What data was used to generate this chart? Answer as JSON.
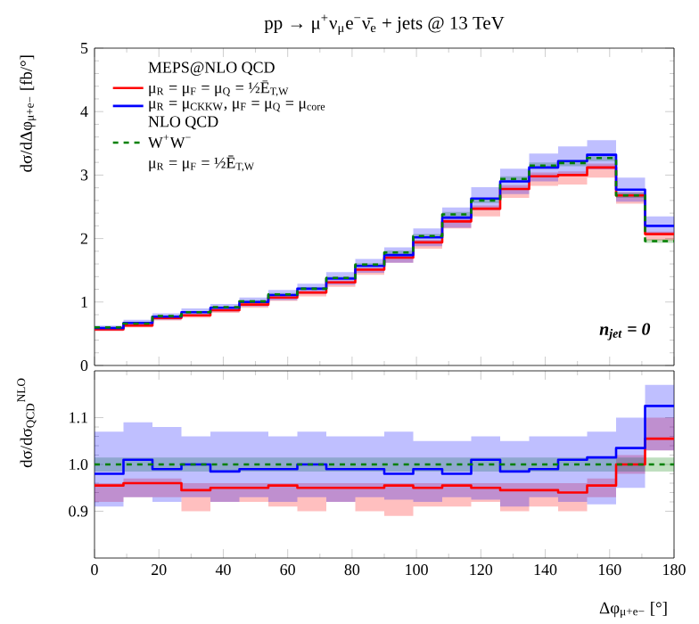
{
  "chart_data": [
    {
      "type": "step",
      "title": "pp → μ$^{+}$ν$_{μ}$e$^{−}$ν̄$_{e}$ + jets @ 13 TeV",
      "ylabel": "dσ/dΔφ$_{μ+e−}$ [fb/°]",
      "x": [
        0,
        9,
        18,
        27,
        36,
        45,
        54,
        63,
        72,
        81,
        90,
        99,
        108,
        117,
        126,
        135,
        144,
        153,
        162,
        171,
        180
      ],
      "xlim": [
        0,
        180
      ],
      "xticks": [
        0,
        20,
        40,
        60,
        80,
        100,
        120,
        140,
        160,
        180
      ],
      "ylim": [
        0,
        5
      ],
      "yticks": [
        0,
        1,
        2,
        3,
        4,
        5
      ],
      "tick_labels": "y",
      "legend": "top left",
      "annotations": [
        "MEPS@NLO QCD",
        "NLO QCD",
        "μ$_{R}$ = μ$_{F}$ = ½Ē$_{T,W}$",
        "n$_{jet}$ = 0"
      ],
      "series": [
        {
          "name": "μ$_{R}$ = μ$_{F}$ = μ$_{Q}$ = ½Ē$_{T,W}$",
          "color": "#ff0000",
          "values": [
            0.57,
            0.63,
            0.75,
            0.79,
            0.87,
            0.96,
            1.07,
            1.15,
            1.31,
            1.51,
            1.7,
            1.94,
            2.27,
            2.47,
            2.78,
            2.98,
            3.0,
            3.12,
            2.68,
            2.07,
            2.07
          ],
          "upper": [
            0.58,
            0.64,
            0.77,
            0.81,
            0.89,
            0.98,
            1.09,
            1.17,
            1.34,
            1.54,
            1.73,
            1.98,
            2.32,
            2.52,
            2.84,
            3.04,
            3.06,
            3.18,
            2.73,
            2.11,
            2.11
          ],
          "lower": [
            0.54,
            0.6,
            0.71,
            0.75,
            0.83,
            0.91,
            1.02,
            1.09,
            1.24,
            1.43,
            1.62,
            1.84,
            2.16,
            2.35,
            2.64,
            2.83,
            2.85,
            2.96,
            2.55,
            1.97,
            1.97
          ]
        },
        {
          "name": "μ$_{R}$ = μ$_{CKKW}$, μ$_{F}$ = μ$_{Q}$ = μ$_{core}$",
          "color": "#0000ff",
          "values": [
            0.59,
            0.67,
            0.77,
            0.84,
            0.91,
            1.0,
            1.11,
            1.21,
            1.37,
            1.57,
            1.74,
            2.02,
            2.33,
            2.63,
            2.9,
            3.12,
            3.22,
            3.32,
            2.77,
            2.2,
            2.2
          ],
          "upper": [
            0.63,
            0.72,
            0.82,
            0.9,
            0.97,
            1.07,
            1.19,
            1.29,
            1.47,
            1.68,
            1.86,
            2.16,
            2.49,
            2.81,
            3.1,
            3.34,
            3.45,
            3.55,
            2.96,
            2.35,
            2.35
          ],
          "lower": [
            0.55,
            0.62,
            0.72,
            0.78,
            0.85,
            0.93,
            1.03,
            1.13,
            1.27,
            1.46,
            1.62,
            1.88,
            2.17,
            2.45,
            2.7,
            2.9,
            2.99,
            3.09,
            2.58,
            2.05,
            2.05
          ]
        },
        {
          "name": "W$^{+}$W$^{−}$",
          "color": "#008000",
          "line_style": "dashed",
          "values": [
            0.6,
            0.66,
            0.78,
            0.84,
            0.92,
            1.01,
            1.12,
            1.21,
            1.38,
            1.59,
            1.78,
            2.04,
            2.38,
            2.6,
            2.94,
            3.15,
            3.19,
            3.27,
            2.68,
            1.96,
            1.96
          ],
          "upper": [
            0.61,
            0.67,
            0.79,
            0.85,
            0.93,
            1.03,
            1.14,
            1.23,
            1.4,
            1.61,
            1.81,
            2.07,
            2.42,
            2.64,
            2.98,
            3.2,
            3.24,
            3.32,
            2.72,
            1.99,
            1.99
          ],
          "lower": [
            0.59,
            0.65,
            0.77,
            0.83,
            0.91,
            0.99,
            1.1,
            1.19,
            1.36,
            1.57,
            1.75,
            2.01,
            2.34,
            2.56,
            2.9,
            3.1,
            3.14,
            3.22,
            2.64,
            1.93,
            1.93
          ]
        }
      ]
    },
    {
      "type": "step",
      "xlabel": "Δφ$_{μ+e−}$ [°]",
      "ylabel": "dσ/dσ$_{QCD}$$^{NLO}$",
      "x": [
        0,
        9,
        18,
        27,
        36,
        45,
        54,
        63,
        72,
        81,
        90,
        99,
        108,
        117,
        126,
        135,
        144,
        153,
        162,
        171,
        180
      ],
      "xlim": [
        0,
        180
      ],
      "xticks": [
        0,
        20,
        40,
        60,
        80,
        100,
        120,
        140,
        160,
        180
      ],
      "ylim": [
        0.8,
        1.2
      ],
      "yticks": [
        0.9,
        {
          "value": 1,
          "label": "1.0"
        },
        1.1
      ],
      "series": [
        {
          "color": "#ff0000",
          "values": [
            0.955,
            0.96,
            0.96,
            0.945,
            0.95,
            0.95,
            0.955,
            0.95,
            0.95,
            0.95,
            0.955,
            0.95,
            0.955,
            0.95,
            0.945,
            0.945,
            0.94,
            0.955,
            1.0,
            1.055,
            1.055
          ],
          "upper": [
            0.96,
            0.97,
            0.97,
            0.96,
            0.96,
            0.96,
            0.96,
            0.96,
            0.96,
            0.96,
            0.96,
            0.96,
            0.96,
            0.96,
            0.96,
            0.96,
            0.96,
            0.97,
            1.02,
            1.1,
            1.1
          ],
          "lower": [
            0.92,
            0.93,
            0.93,
            0.9,
            0.92,
            0.92,
            0.91,
            0.9,
            0.92,
            0.9,
            0.89,
            0.91,
            0.91,
            0.92,
            0.9,
            0.91,
            0.9,
            0.93,
            0.98,
            1.03,
            1.03
          ]
        },
        {
          "color": "#0000ff",
          "values": [
            0.98,
            1.01,
            0.99,
            1.0,
            0.985,
            0.99,
            0.99,
            1.0,
            0.99,
            0.99,
            0.98,
            0.99,
            0.98,
            1.01,
            0.985,
            0.99,
            1.01,
            1.015,
            1.035,
            1.125,
            1.125
          ],
          "upper": [
            1.07,
            1.09,
            1.08,
            1.06,
            1.07,
            1.07,
            1.06,
            1.07,
            1.06,
            1.06,
            1.07,
            1.05,
            1.05,
            1.06,
            1.05,
            1.06,
            1.06,
            1.07,
            1.1,
            1.17,
            1.17
          ],
          "lower": [
            0.91,
            0.93,
            0.92,
            0.93,
            0.92,
            0.93,
            0.92,
            0.93,
            0.92,
            0.93,
            0.925,
            0.92,
            0.93,
            0.925,
            0.91,
            0.93,
            0.92,
            0.915,
            0.95,
            1.03,
            1.03
          ]
        },
        {
          "color": "#008000",
          "line_style": "dashed",
          "values": [
            1,
            1,
            1,
            1,
            1,
            1,
            1,
            1,
            1,
            1,
            1,
            1,
            1,
            1,
            1,
            1,
            1,
            1,
            1,
            1,
            1
          ],
          "upper": [
            1.015,
            1.015,
            1.015,
            1.015,
            1.015,
            1.015,
            1.015,
            1.015,
            1.015,
            1.015,
            1.015,
            1.015,
            1.015,
            1.015,
            1.015,
            1.015,
            1.015,
            1.015,
            1.015,
            1.015,
            1.015
          ],
          "lower": [
            0.985,
            0.985,
            0.985,
            0.985,
            0.985,
            0.985,
            0.985,
            0.985,
            0.985,
            0.985,
            0.985,
            0.985,
            0.985,
            0.985,
            0.985,
            0.985,
            0.985,
            0.985,
            0.985,
            0.985,
            0.985
          ]
        }
      ]
    }
  ]
}
